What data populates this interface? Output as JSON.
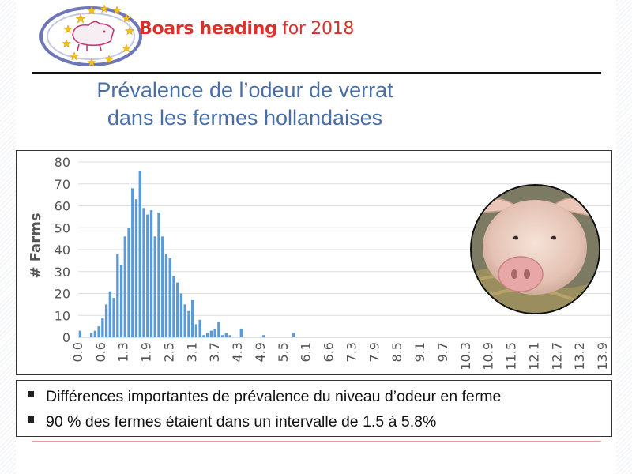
{
  "header": {
    "brand_bold": "Boars heading",
    "brand_light": " for 2018",
    "logo_icon": "eu-stars-pig-logo-icon"
  },
  "title": {
    "line1": "Prévalence de l’odeur de verrat",
    "line2": "dans les fermes hollandaises"
  },
  "photo": {
    "icon": "pig-photo-icon"
  },
  "bullets": [
    "Différences importantes de prévalence du niveau d’odeur en ferme",
    "90 % des fermes étaient dans un intervalle de 1.5 à 5.8%"
  ],
  "chart_data": {
    "type": "bar",
    "title": "",
    "xlabel": "",
    "ylabel": "# Farms",
    "ylim": [
      0,
      80
    ],
    "yticks": [
      0,
      10,
      20,
      30,
      40,
      50,
      60,
      70,
      80
    ],
    "grid": true,
    "bar_color": "#5b9bd5",
    "categories": [
      "0.0",
      "0.1",
      "0.2",
      "0.3",
      "0.4",
      "0.5",
      "0.6",
      "0.7",
      "0.8",
      "0.9",
      "1.0",
      "1.1",
      "1.2",
      "1.3",
      "1.4",
      "1.5",
      "1.6",
      "1.7",
      "1.8",
      "1.9",
      "2.0",
      "2.1",
      "2.2",
      "2.3",
      "2.4",
      "2.5",
      "2.6",
      "2.7",
      "2.8",
      "2.9",
      "3.0",
      "3.1",
      "3.2",
      "3.3",
      "3.4",
      "3.5",
      "3.6",
      "3.7",
      "3.8",
      "3.9",
      "4.0",
      "4.1",
      "4.2",
      "4.3",
      "4.4",
      "4.5",
      "4.6",
      "4.7",
      "4.8",
      "4.9",
      "5.0",
      "5.1",
      "5.2",
      "5.3",
      "5.4",
      "5.5",
      "5.6",
      "5.7",
      "5.8",
      "5.9",
      "6.0",
      "6.1",
      "6.2",
      "6.3",
      "6.4",
      "6.5",
      "6.6",
      "6.7",
      "6.8",
      "6.9",
      "7.0",
      "7.1",
      "7.2",
      "7.3",
      "7.4",
      "7.5",
      "7.6",
      "7.7",
      "7.8",
      "7.9",
      "8.0",
      "8.1",
      "8.2",
      "8.3",
      "8.4",
      "8.5",
      "8.6",
      "8.7",
      "8.8",
      "8.9",
      "9.0",
      "9.1",
      "9.2",
      "9.3",
      "9.4",
      "9.5",
      "9.6",
      "9.7",
      "9.8",
      "9.9",
      "10.0",
      "10.1",
      "10.2",
      "10.3",
      "10.4",
      "10.5",
      "10.6",
      "10.7",
      "10.8",
      "10.9",
      "11.0",
      "11.1",
      "11.2",
      "11.3",
      "11.4",
      "11.5",
      "11.6",
      "11.7",
      "11.8",
      "11.9",
      "12.0",
      "12.1",
      "12.2",
      "12.3",
      "12.4",
      "12.5",
      "12.6",
      "12.7",
      "12.8",
      "12.9",
      "13.0",
      "13.1",
      "13.2",
      "13.3",
      "13.4",
      "13.5",
      "13.6",
      "13.7",
      "13.8",
      "13.9"
    ],
    "tick_labels": [
      "0.0",
      "0.6",
      "1.3",
      "1.9",
      "2.5",
      "3.1",
      "3.7",
      "4.3",
      "4.9",
      "5.5",
      "6.1",
      "6.6",
      "7.3",
      "7.9",
      "8.5",
      "9.1",
      "9.7",
      "10.3",
      "10.9",
      "11.5",
      "12.1",
      "12.7",
      "13.2",
      "13.9"
    ],
    "values": [
      3,
      0,
      0,
      2,
      3,
      5,
      9,
      15,
      21,
      18,
      38,
      33,
      46,
      50,
      68,
      63,
      76,
      59,
      56,
      58,
      46,
      57,
      46,
      38,
      36,
      28,
      25,
      20,
      15,
      12,
      17,
      6,
      8,
      1,
      2,
      3,
      4,
      7,
      1,
      2,
      1,
      0,
      0,
      4,
      0,
      0,
      0,
      0,
      0,
      1,
      0,
      0,
      0,
      0,
      0,
      0,
      0,
      2,
      0,
      0,
      0,
      0,
      0,
      0,
      0,
      0,
      0,
      0,
      0,
      0,
      0,
      0,
      0,
      0,
      0,
      0,
      0,
      0,
      0,
      0,
      0,
      0,
      0,
      0,
      0,
      0,
      0,
      0,
      0,
      0,
      0,
      0,
      0,
      0,
      0,
      0,
      0,
      0,
      0,
      0,
      0,
      0,
      0,
      0,
      0,
      0,
      0,
      0,
      0,
      0,
      0,
      0,
      0,
      0,
      0,
      0,
      0,
      0,
      0,
      0,
      0,
      0,
      0,
      0,
      0,
      0,
      0,
      0,
      0,
      0,
      0,
      0,
      0,
      0,
      0,
      0,
      0,
      0,
      0,
      0
    ],
    "note_values_start_index": 0
  }
}
